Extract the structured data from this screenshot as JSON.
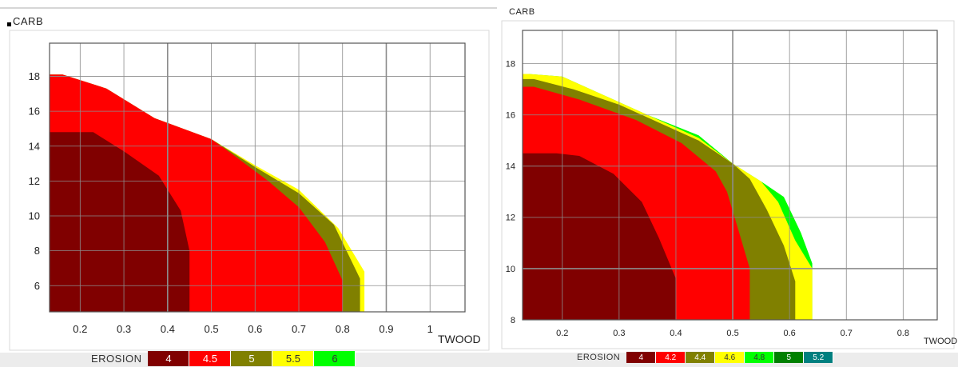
{
  "chart_data": [
    {
      "type": "area",
      "ylabel": "CARB",
      "xlabel": "TWOOD",
      "xlim": [
        0.13,
        1.08
      ],
      "ylim": [
        4.5,
        19.9
      ],
      "xticks": [
        "0.2",
        "0.3",
        "0.4",
        "0.5",
        "0.6",
        "0.7",
        "0.8",
        "0.9",
        "1"
      ],
      "yticks": [
        "6",
        "8",
        "10",
        "12",
        "14",
        "16",
        "18"
      ],
      "grid": true,
      "legend": {
        "title": "EROSION",
        "placement": "bottom",
        "items": [
          {
            "label": "4",
            "color": "#800000"
          },
          {
            "label": "4.5",
            "color": "#ff0000"
          },
          {
            "label": "5",
            "color": "#808000"
          },
          {
            "label": "5.5",
            "color": "#ffff00"
          },
          {
            "label": "6",
            "color": "#00ff00"
          }
        ]
      },
      "series": [
        {
          "name": "5.5",
          "color": "#ffff00",
          "boundary": [
            [
              0.13,
              18.1
            ],
            [
              0.16,
              18.1
            ],
            [
              0.26,
              17.3
            ],
            [
              0.37,
              15.6
            ],
            [
              0.5,
              14.4
            ],
            [
              0.6,
              12.9
            ],
            [
              0.7,
              11.5
            ],
            [
              0.79,
              9.3
            ],
            [
              0.85,
              6.8
            ],
            [
              0.85,
              4.5
            ],
            [
              0.13,
              4.5
            ]
          ]
        },
        {
          "name": "5",
          "color": "#808000",
          "boundary": [
            [
              0.13,
              18.1
            ],
            [
              0.16,
              18.1
            ],
            [
              0.26,
              17.3
            ],
            [
              0.37,
              15.6
            ],
            [
              0.5,
              14.4
            ],
            [
              0.6,
              12.8
            ],
            [
              0.7,
              11.3
            ],
            [
              0.78,
              9.5
            ],
            [
              0.84,
              6.4
            ],
            [
              0.84,
              4.5
            ],
            [
              0.13,
              4.5
            ]
          ]
        },
        {
          "name": "4.5",
          "color": "#ff0000",
          "boundary": [
            [
              0.13,
              18.1
            ],
            [
              0.16,
              18.1
            ],
            [
              0.26,
              17.3
            ],
            [
              0.37,
              15.6
            ],
            [
              0.5,
              14.4
            ],
            [
              0.55,
              13.5
            ],
            [
              0.63,
              12.0
            ],
            [
              0.7,
              10.5
            ],
            [
              0.76,
              8.5
            ],
            [
              0.8,
              6.3
            ],
            [
              0.8,
              4.5
            ],
            [
              0.13,
              4.5
            ]
          ]
        },
        {
          "name": "4",
          "color": "#800000",
          "boundary": [
            [
              0.13,
              14.8
            ],
            [
              0.23,
              14.8
            ],
            [
              0.3,
              13.7
            ],
            [
              0.38,
              12.3
            ],
            [
              0.43,
              10.3
            ],
            [
              0.45,
              8.0
            ],
            [
              0.45,
              4.5
            ],
            [
              0.13,
              4.5
            ]
          ]
        }
      ]
    },
    {
      "type": "area",
      "ylabel": "CARB",
      "xlabel": "TWOOD",
      "xlim": [
        0.13,
        0.86
      ],
      "ylim": [
        8,
        19.3
      ],
      "xticks": [
        "0.2",
        "0.3",
        "0.4",
        "0.5",
        "0.6",
        "0.7",
        "0.8"
      ],
      "yticks": [
        "8",
        "10",
        "12",
        "14",
        "16",
        "18"
      ],
      "grid": true,
      "legend": {
        "title": "EROSION",
        "placement": "bottom",
        "items": [
          {
            "label": "4",
            "color": "#800000"
          },
          {
            "label": "4.2",
            "color": "#ff0000"
          },
          {
            "label": "4.4",
            "color": "#808000"
          },
          {
            "label": "4.6",
            "color": "#ffff00"
          },
          {
            "label": "4.8",
            "color": "#00ff00"
          },
          {
            "label": "5",
            "color": "#008000"
          },
          {
            "label": "5.2",
            "color": "#008080"
          }
        ]
      },
      "series": [
        {
          "name": "4.8",
          "color": "#00ff00",
          "boundary": [
            [
              0.13,
              17.6
            ],
            [
              0.14,
              17.6
            ],
            [
              0.2,
              17.5
            ],
            [
              0.27,
              16.8
            ],
            [
              0.35,
              16.0
            ],
            [
              0.44,
              15.2
            ],
            [
              0.5,
              14.1
            ],
            [
              0.55,
              13.4
            ],
            [
              0.59,
              12.8
            ],
            [
              0.62,
              11.4
            ],
            [
              0.64,
              10.2
            ],
            [
              0.64,
              8
            ],
            [
              0.13,
              8
            ]
          ]
        },
        {
          "name": "4.6",
          "color": "#ffff00",
          "boundary": [
            [
              0.13,
              17.6
            ],
            [
              0.14,
              17.6
            ],
            [
              0.2,
              17.5
            ],
            [
              0.27,
              16.8
            ],
            [
              0.35,
              16.0
            ],
            [
              0.44,
              15.1
            ],
            [
              0.5,
              14.1
            ],
            [
              0.55,
              13.4
            ],
            [
              0.58,
              12.6
            ],
            [
              0.61,
              11.1
            ],
            [
              0.64,
              10.0
            ],
            [
              0.64,
              8
            ],
            [
              0.13,
              8
            ]
          ]
        },
        {
          "name": "4.4",
          "color": "#808000",
          "boundary": [
            [
              0.13,
              17.4
            ],
            [
              0.15,
              17.4
            ],
            [
              0.22,
              17.0
            ],
            [
              0.3,
              16.4
            ],
            [
              0.38,
              15.6
            ],
            [
              0.44,
              15.0
            ],
            [
              0.5,
              14.1
            ],
            [
              0.53,
              13.5
            ],
            [
              0.56,
              12.3
            ],
            [
              0.59,
              10.9
            ],
            [
              0.61,
              9.5
            ],
            [
              0.61,
              8
            ],
            [
              0.13,
              8
            ]
          ]
        },
        {
          "name": "4.2",
          "color": "#ff0000",
          "boundary": [
            [
              0.13,
              17.1
            ],
            [
              0.15,
              17.1
            ],
            [
              0.23,
              16.6
            ],
            [
              0.33,
              15.8
            ],
            [
              0.41,
              14.9
            ],
            [
              0.47,
              13.8
            ],
            [
              0.49,
              13.0
            ],
            [
              0.51,
              11.5
            ],
            [
              0.53,
              10.0
            ],
            [
              0.53,
              8
            ],
            [
              0.13,
              8
            ]
          ]
        },
        {
          "name": "4",
          "color": "#800000",
          "boundary": [
            [
              0.13,
              14.5
            ],
            [
              0.19,
              14.5
            ],
            [
              0.23,
              14.4
            ],
            [
              0.29,
              13.7
            ],
            [
              0.34,
              12.6
            ],
            [
              0.37,
              11.2
            ],
            [
              0.4,
              9.6
            ],
            [
              0.4,
              8
            ],
            [
              0.13,
              8
            ]
          ]
        }
      ]
    }
  ]
}
